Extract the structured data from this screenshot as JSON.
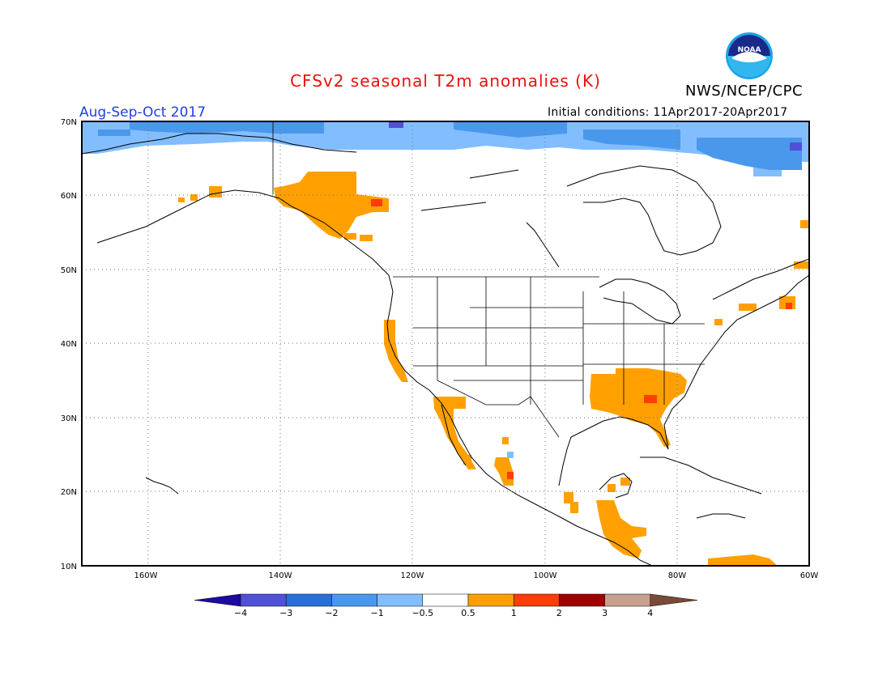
{
  "header": {
    "title": "CFSv2 seasonal T2m anomalies (K)",
    "org": "NWS/NCEP/CPC",
    "season": "Aug-Sep-Oct 2017",
    "initial_conditions": "Initial conditions: 11Apr2017-20Apr2017",
    "logo_text": "NOAA"
  },
  "axes": {
    "lon_ticks": [
      "160W",
      "140W",
      "120W",
      "100W",
      "80W",
      "60W"
    ],
    "lat_ticks": [
      "70N",
      "60N",
      "50N",
      "40N",
      "30N",
      "20N",
      "10N"
    ],
    "lon_range": [
      -170,
      -60
    ],
    "lat_range": [
      10,
      70
    ],
    "grid": "dotted"
  },
  "colorbar": {
    "labels": [
      "-4",
      "-3",
      "-2",
      "-1",
      "-0.5",
      "0.5",
      "1",
      "2",
      "3",
      "4"
    ],
    "colors": [
      "#1e0aa0",
      "#5050d8",
      "#2a6ed8",
      "#4a98ec",
      "#82beff",
      "#ffffff",
      "#ffa000",
      "#ff3c0a",
      "#a00000",
      "#c8a090",
      "#7a4a38"
    ]
  },
  "anomaly_regions": [
    {
      "name": "Southeast US",
      "level": "0.5-1"
    },
    {
      "name": "Gulf coast / Georgia",
      "level": "1-2"
    },
    {
      "name": "California coast",
      "level": "0.5-1"
    },
    {
      "name": "Baja California",
      "level": "0.5-1"
    },
    {
      "name": "Southeast Alaska / British Columbia",
      "level": "0.5-1"
    },
    {
      "name": "Western Mexico",
      "level": "0.5-1"
    },
    {
      "name": "Central America",
      "level": "0.5-1"
    },
    {
      "name": "Northern Venezuela",
      "level": "0.5-1"
    },
    {
      "name": "Nova Scotia",
      "level": "0.5-1"
    },
    {
      "name": "Arctic Alaska / Canadian Archipelago",
      "level": "-1 to -2"
    }
  ]
}
